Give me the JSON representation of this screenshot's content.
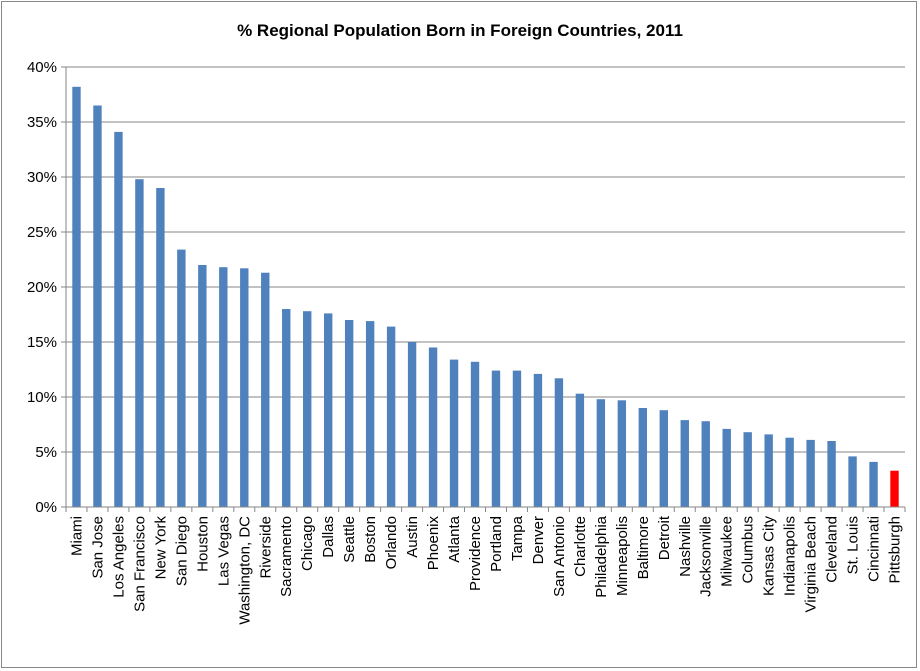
{
  "chart_data": {
    "type": "bar",
    "title": "% Regional Population Born in Foreign Countries, 2011",
    "xlabel": "",
    "ylabel": "",
    "ylim": [
      0,
      40
    ],
    "yticks": [
      "0%",
      "5%",
      "10%",
      "15%",
      "20%",
      "25%",
      "30%",
      "35%",
      "40%"
    ],
    "grid": true,
    "legend": "none",
    "bar_color": "#4F81BD",
    "highlight_color": "#FF0000",
    "highlight_category": "Pittsburgh",
    "categories": [
      "Miami",
      "San Jose",
      "Los Angeles",
      "San Francisco",
      "New York",
      "San Diego",
      "Houston",
      "Las Vegas",
      "Washington, DC",
      "Riverside",
      "Sacramento",
      "Chicago",
      "Dallas",
      "Seattle",
      "Boston",
      "Orlando",
      "Austin",
      "Phoenix",
      "Atlanta",
      "Providence",
      "Portland",
      "Tampa",
      "Denver",
      "San Antonio",
      "Charlotte",
      "Philadelphia",
      "Minneapolis",
      "Baltimore",
      "Detroit",
      "Nashville",
      "Jacksonville",
      "Milwaukee",
      "Columbus",
      "Kansas City",
      "Indianapolis",
      "Virginia Beach",
      "Cleveland",
      "St. Louis",
      "Cincinnati",
      "Pittsburgh"
    ],
    "values": [
      38.2,
      36.5,
      34.1,
      29.8,
      29.0,
      23.4,
      22.0,
      21.8,
      21.7,
      21.3,
      18.0,
      17.8,
      17.6,
      17.0,
      16.9,
      16.4,
      15.0,
      14.5,
      13.4,
      13.2,
      12.4,
      12.4,
      12.1,
      11.7,
      10.3,
      9.8,
      9.7,
      9.0,
      8.8,
      7.9,
      7.8,
      7.1,
      6.8,
      6.6,
      6.3,
      6.1,
      6.0,
      4.6,
      4.1,
      3.3
    ]
  }
}
